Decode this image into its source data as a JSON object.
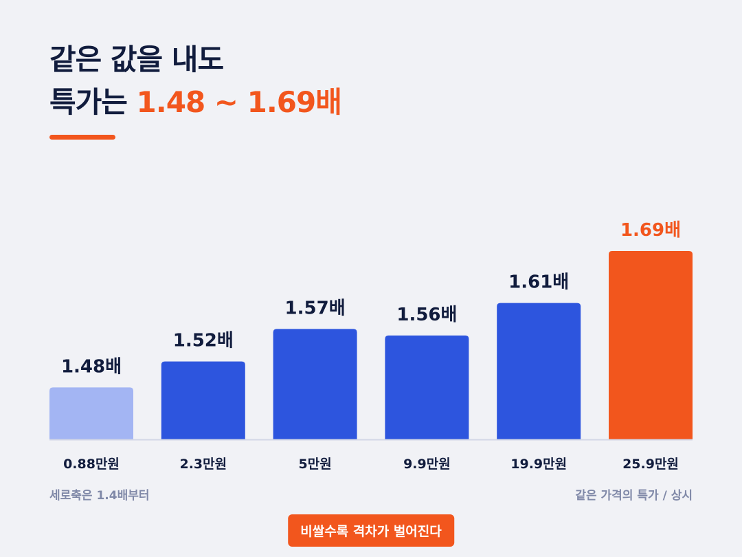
{
  "header": {
    "line1": "같은 값을 내도",
    "line2_prefix": "특가는 ",
    "line2_highlight": "1.48 ~ 1.69배"
  },
  "notes": {
    "left": "세로축은 1.4배부터",
    "right": "같은 가격의 특가 / 상시"
  },
  "cta": "비쌀수록 격차가 벌어진다",
  "colors": {
    "first_bar": "#a3b5f3",
    "bar": "#2d55de",
    "highlight_bar": "#f2561d",
    "label": "#111c3d",
    "highlight_label": "#f2561d"
  },
  "chart_data": {
    "type": "bar",
    "categories": [
      "0.88만원",
      "2.3만원",
      "5만원",
      "9.9만원",
      "19.9만원",
      "25.9만원"
    ],
    "values": [
      1.48,
      1.52,
      1.57,
      1.56,
      1.61,
      1.69
    ],
    "value_labels": [
      "1.48배",
      "1.52배",
      "1.57배",
      "1.56배",
      "1.61배",
      "1.69배"
    ],
    "ylim": [
      1.4,
      1.7
    ],
    "grid": false,
    "highlight_index": 5,
    "title": "",
    "xlabel": "",
    "ylabel": ""
  }
}
